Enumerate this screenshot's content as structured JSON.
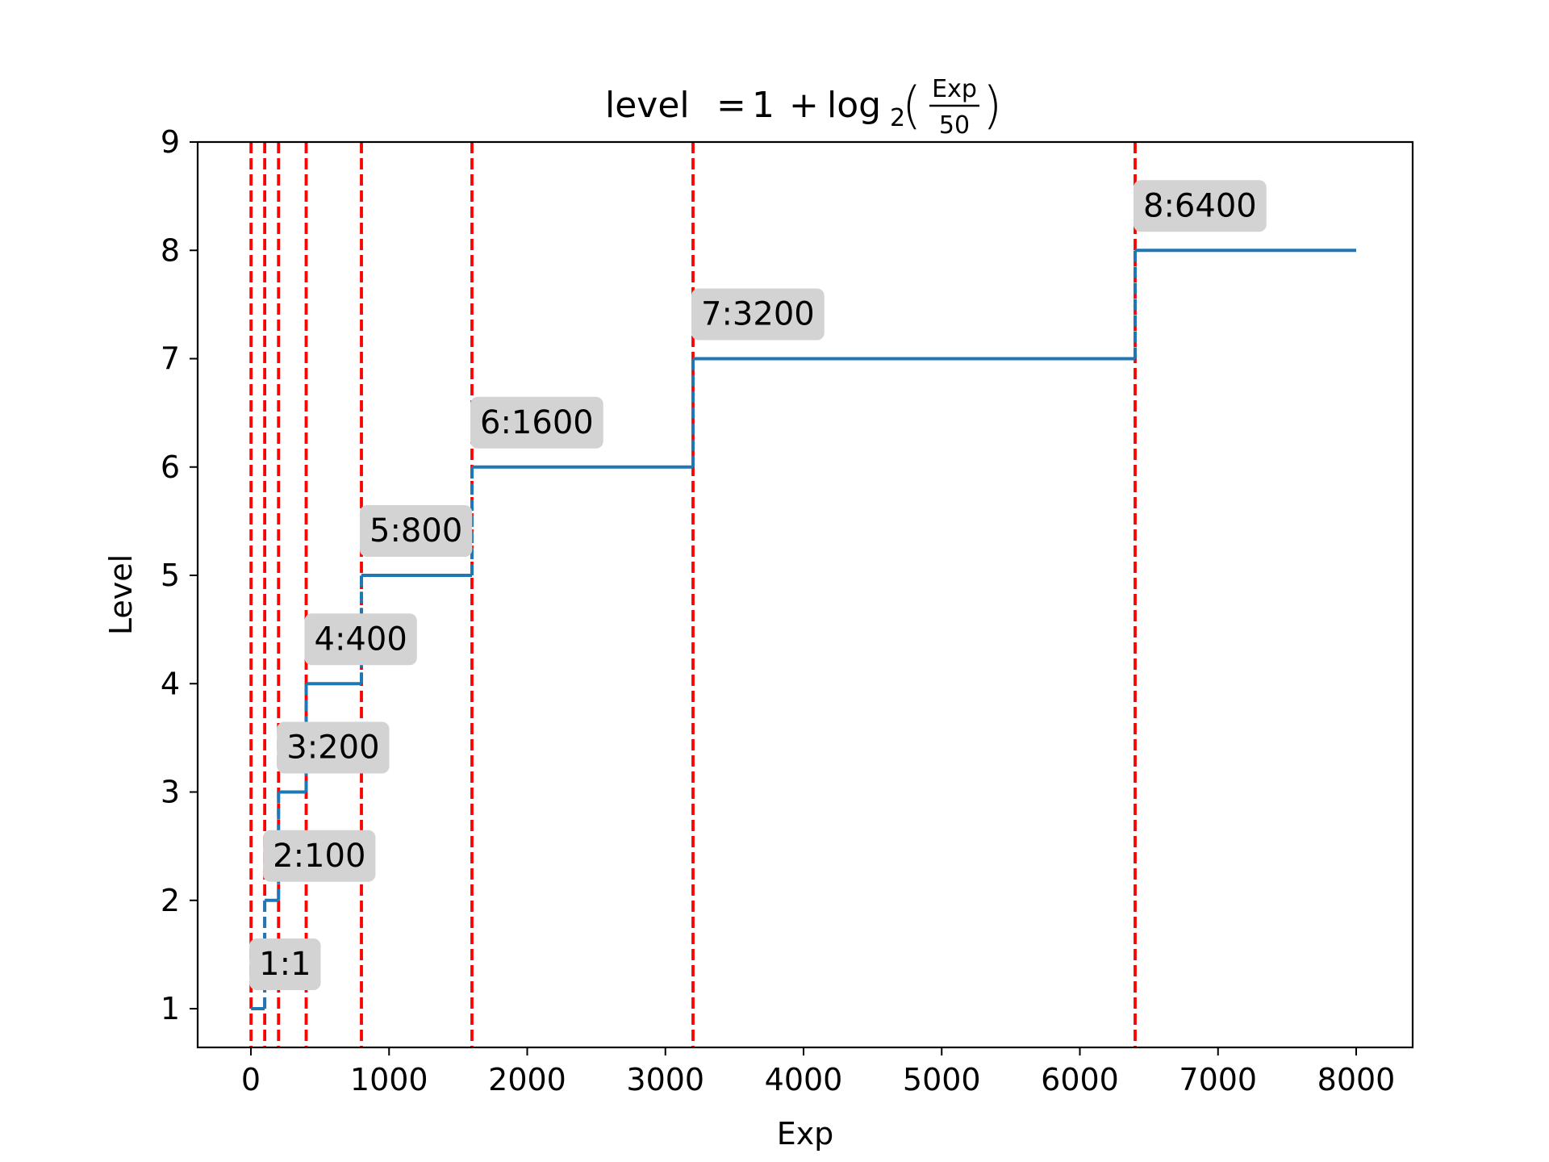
{
  "chart_data": {
    "type": "line",
    "title": "level = 1 + log2(Exp/50)",
    "title_parts": {
      "lhs": "level",
      "eq": "=",
      "one": "1",
      "plus": "+",
      "log": "log",
      "base": "2",
      "numerator": "Exp",
      "denominator": "50"
    },
    "xlabel": "Exp",
    "ylabel": "Level",
    "xlim": [
      -400,
      8400
    ],
    "ylim": [
      0.67,
      9
    ],
    "xticks": [
      0,
      1000,
      2000,
      3000,
      4000,
      5000,
      6000,
      7000,
      8000
    ],
    "yticks": [
      1,
      2,
      3,
      4,
      5,
      6,
      7,
      8,
      9
    ],
    "grid": false,
    "series": [
      {
        "color": "#1f77b4",
        "step_x": [
          1,
          100,
          200,
          400,
          800,
          1600,
          3200,
          6400,
          8000
        ],
        "step_y": [
          1,
          2,
          3,
          4,
          5,
          6,
          7,
          8,
          8
        ]
      }
    ],
    "vlines": {
      "color": "#ff0000",
      "style": "dashed",
      "x": [
        1,
        100,
        200,
        400,
        800,
        1600,
        3200,
        6400
      ]
    },
    "annotations": [
      {
        "text": "1:1",
        "x": 1,
        "y": 1
      },
      {
        "text": "2:100",
        "x": 100,
        "y": 2
      },
      {
        "text": "3:200",
        "x": 200,
        "y": 3
      },
      {
        "text": "4:400",
        "x": 400,
        "y": 4
      },
      {
        "text": "5:800",
        "x": 800,
        "y": 5
      },
      {
        "text": "6:1600",
        "x": 1600,
        "y": 6
      },
      {
        "text": "7:3200",
        "x": 3200,
        "y": 7
      },
      {
        "text": "8:6400",
        "x": 6400,
        "y": 8
      }
    ],
    "annotation_box_color": "#d3d3d3"
  }
}
